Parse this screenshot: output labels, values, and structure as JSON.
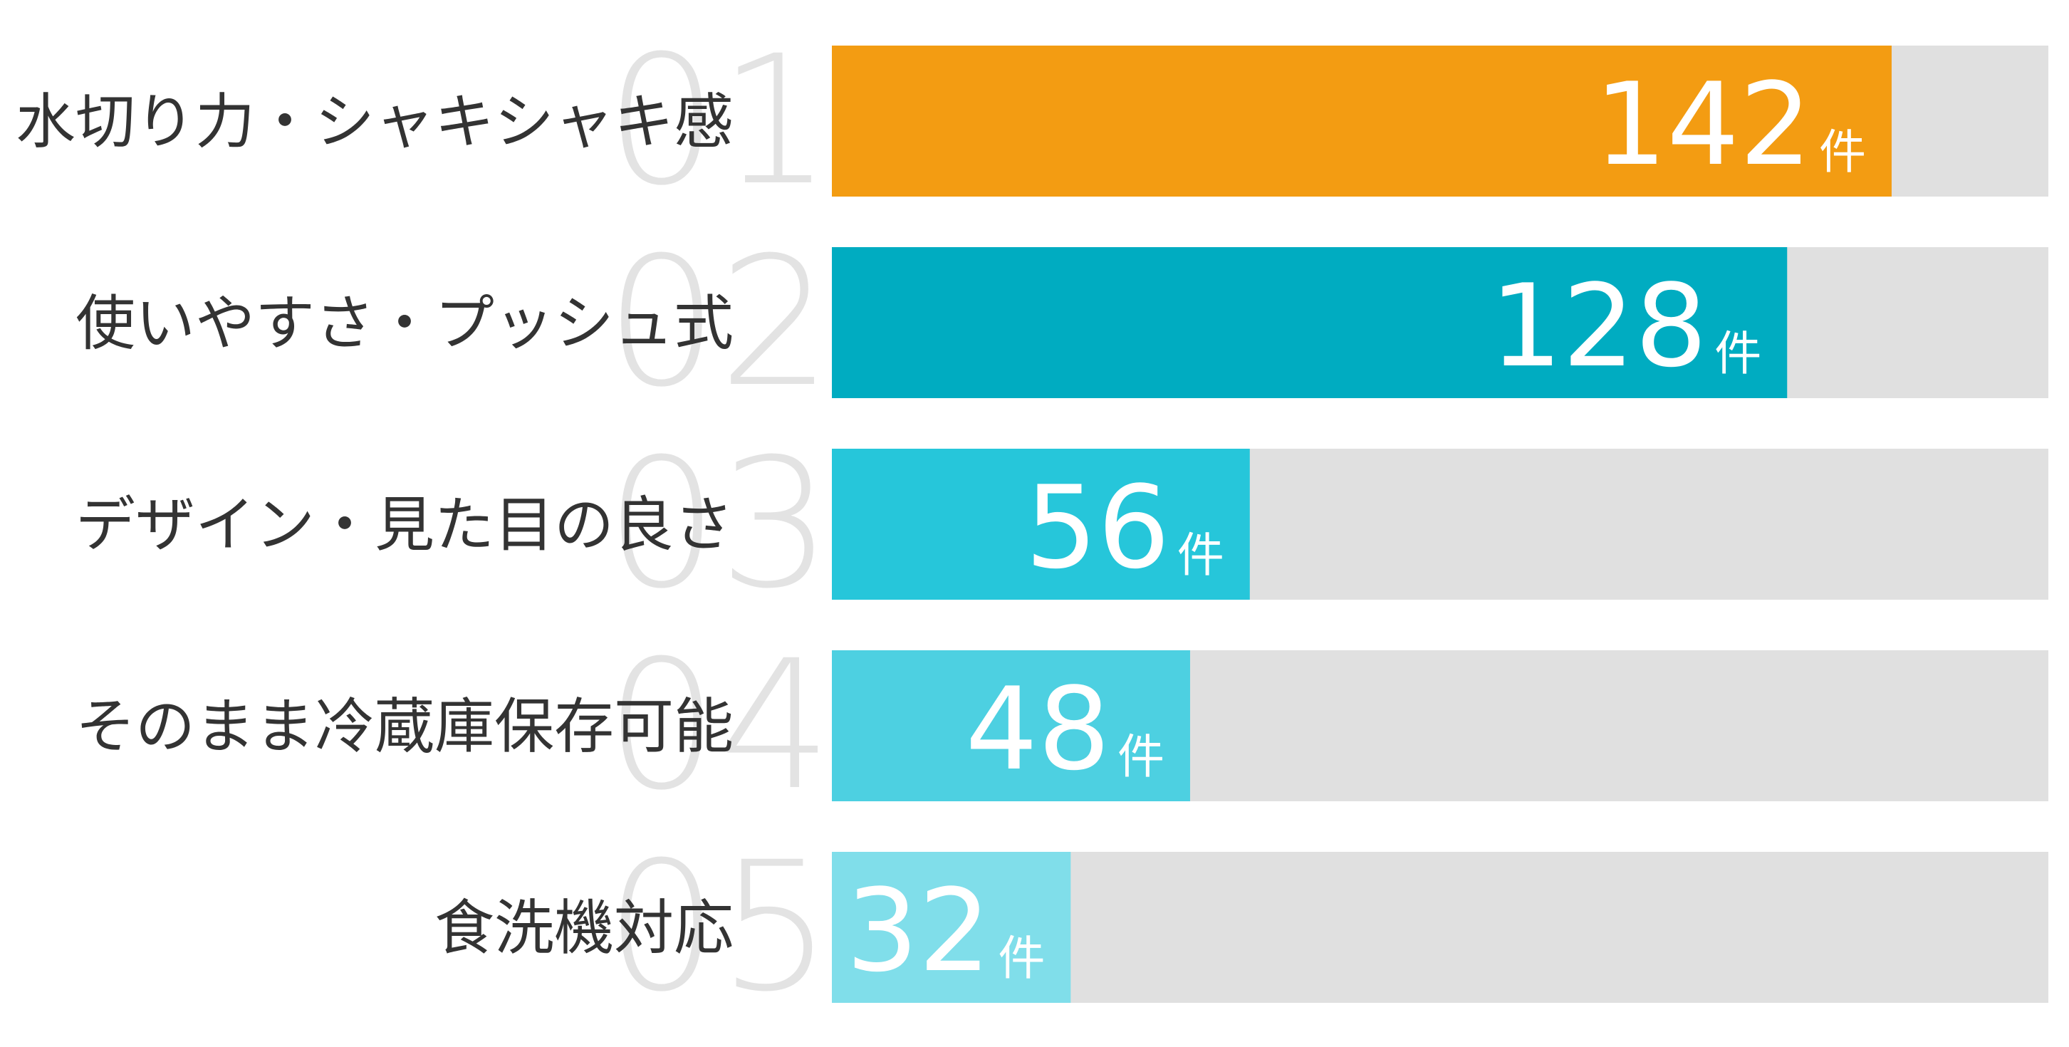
{
  "chart_data": {
    "type": "bar",
    "orientation": "horizontal",
    "categories": [
      "水切り力・シャキシャキ感",
      "使いやすさ・プッシュ式",
      "デザイン・見た目の良さ",
      "そのまま冷蔵庫保存可能",
      "食洗機対応"
    ],
    "ranks": [
      "01",
      "02",
      "03",
      "04",
      "05"
    ],
    "values": [
      142,
      128,
      56,
      48,
      32
    ],
    "unit": "件",
    "xlim": [
      0,
      163
    ],
    "bar_colors": [
      "#F39C12",
      "#00ACC1",
      "#26C6DA",
      "#4DD0E1",
      "#80DEEA"
    ],
    "track_color": "#E0E0E0",
    "rank_color": "#E3E3E3",
    "label_color": "#333333",
    "value_color": "#FFFFFF",
    "grid": false,
    "legend": "none"
  }
}
